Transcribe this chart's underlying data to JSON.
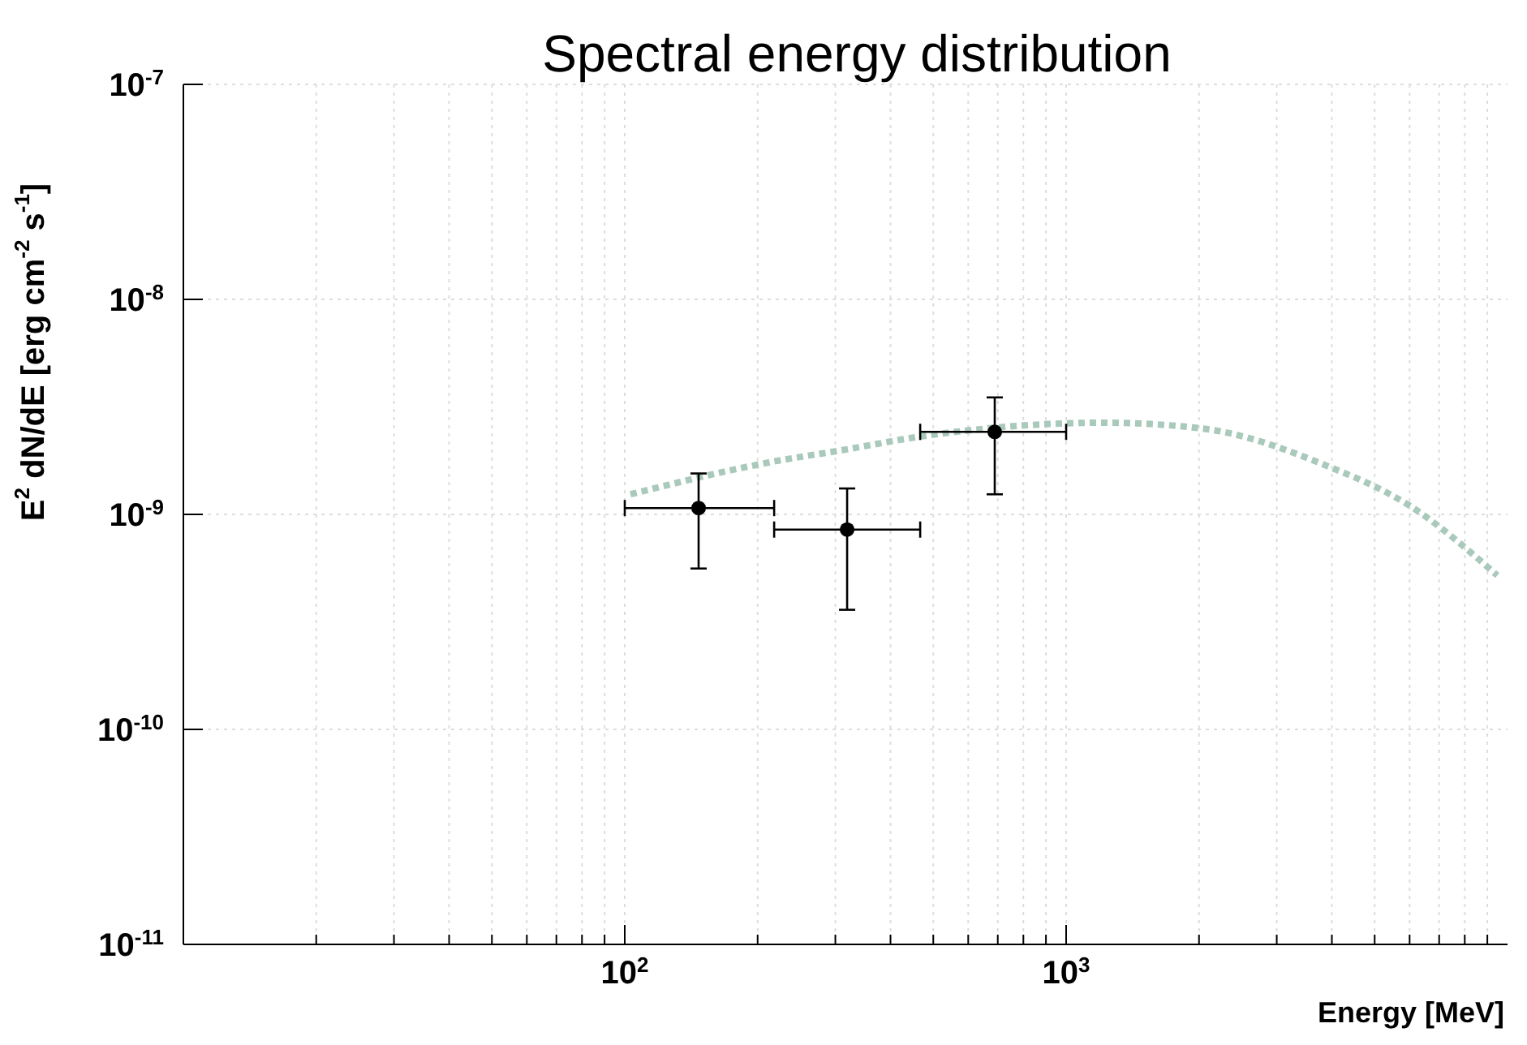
{
  "chart_data": {
    "type": "scatter",
    "title": "Spectral energy distribution",
    "xlabel": "Energy [MeV]",
    "ylabel": "E$^{2}$ dN/dE [erg cm$^{-2}$ s$^{-1}$]",
    "log": "xy",
    "grid": true,
    "legend": false,
    "xlim": [
      10,
      10000
    ],
    "ylim": [
      1e-11,
      1e-07
    ],
    "xticks": [
      {
        "value": 20,
        "label": null
      },
      {
        "value": 30,
        "label": null
      },
      {
        "value": 40,
        "label": null
      },
      {
        "value": 50,
        "label": null
      },
      {
        "value": 60,
        "label": null
      },
      {
        "value": 70,
        "label": null
      },
      {
        "value": 80,
        "label": null
      },
      {
        "value": 90,
        "label": null
      },
      {
        "value": 100,
        "label": "10$^{2}$"
      },
      {
        "value": 200,
        "label": null
      },
      {
        "value": 300,
        "label": null
      },
      {
        "value": 400,
        "label": null
      },
      {
        "value": 500,
        "label": null
      },
      {
        "value": 600,
        "label": null
      },
      {
        "value": 700,
        "label": null
      },
      {
        "value": 800,
        "label": null
      },
      {
        "value": 900,
        "label": null
      },
      {
        "value": 1000,
        "label": "10$^{3}$"
      },
      {
        "value": 2000,
        "label": null
      },
      {
        "value": 3000,
        "label": null
      },
      {
        "value": 4000,
        "label": null
      },
      {
        "value": 5000,
        "label": null
      },
      {
        "value": 6000,
        "label": null
      },
      {
        "value": 7000,
        "label": null
      },
      {
        "value": 8000,
        "label": null
      },
      {
        "value": 9000,
        "label": null
      }
    ],
    "yticks": [
      {
        "value": 1e-11,
        "label": "10$^{-11}$"
      },
      {
        "value": 1e-10,
        "label": "10$^{-10}$"
      },
      {
        "value": 1e-09,
        "label": "10$^{-9}$"
      },
      {
        "value": 1e-08,
        "label": "10$^{-8}$"
      },
      {
        "value": 1e-07,
        "label": "10$^{-7}$"
      }
    ],
    "series": [
      {
        "type": "line",
        "color": "#a9c9bb",
        "line_style": "dotted",
        "marker": "none",
        "x": [
          103,
          217,
          311,
          466,
          1216,
          2031,
          3820,
          6030,
          9480
        ],
        "values": [
          1.24e-09,
          1.76e-09,
          1.99e-09,
          2.3e-09,
          2.67e-09,
          2.51e-09,
          1.71e-09,
          1.09e-09,
          5.2e-10
        ]
      },
      {
        "type": "scatter",
        "color": "#000000",
        "marker": "circle",
        "x": [
          147,
          319,
          689
        ],
        "values": [
          1.07e-09,
          8.5e-10,
          2.42e-09
        ],
        "errors": [
          [
            5.6e-10,
            1.55e-09
          ],
          [
            3.6e-10,
            1.32e-09
          ],
          [
            1.24e-09,
            3.5e-09
          ]
        ],
        "xerrors": [
          [
            100,
            218
          ],
          [
            218,
            467
          ],
          [
            467,
            1000
          ]
        ]
      }
    ]
  }
}
